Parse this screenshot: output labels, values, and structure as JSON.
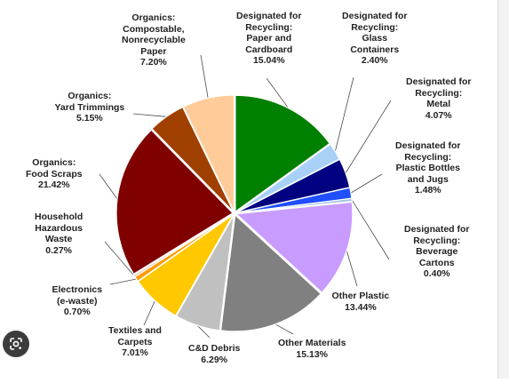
{
  "chart_data": {
    "type": "pie",
    "title": "",
    "start_angle_deg": 90,
    "direction": "clockwise",
    "slices": [
      {
        "label": "Designated for\nRecycling:\nPaper and\nCardboard",
        "value": 15.04,
        "value_label": "15.04%",
        "color": "#008000"
      },
      {
        "label": "Designated for\nRecycling:\nGlass\nContainers",
        "value": 2.4,
        "value_label": "2.40%",
        "color": "#a9d1f7"
      },
      {
        "label": "Designated for\nRecycling:\nMetal",
        "value": 4.07,
        "value_label": "4.07%",
        "color": "#000080"
      },
      {
        "label": "Designated for\nRecycling:\nPlastic Bottles\nand Jugs",
        "value": 1.48,
        "value_label": "1.48%",
        "color": "#1f4fff"
      },
      {
        "label": "Designated for\nRecycling:\nBeverage\nCartons",
        "value": 0.4,
        "value_label": "0.40%",
        "color": "#9ec3e0"
      },
      {
        "label": "Other Plastic",
        "value": 13.44,
        "value_label": "13.44%",
        "color": "#c89cff"
      },
      {
        "label": "Other Materials",
        "value": 15.13,
        "value_label": "15.13%",
        "color": "#808080"
      },
      {
        "label": "C&D Debris",
        "value": 6.29,
        "value_label": "6.29%",
        "color": "#c0c0c0"
      },
      {
        "label": "Textiles and\nCarpets",
        "value": 7.01,
        "value_label": "7.01%",
        "color": "#ffc800"
      },
      {
        "label": "Electronics\n(e-waste)",
        "value": 0.7,
        "value_label": "0.70%",
        "color": "#ff9900"
      },
      {
        "label": "Household\nHazardous\nWaste",
        "value": 0.27,
        "value_label": "0.27%",
        "color": "#f4b183"
      },
      {
        "label": "Organics:\nFood Scraps",
        "value": 21.42,
        "value_label": "21.42%",
        "color": "#800000"
      },
      {
        "label": "Organics:\nYard Trimmings",
        "value": 5.15,
        "value_label": "5.15%",
        "color": "#a04000"
      },
      {
        "label": "Organics:\nCompostable,\nNonrecyclable\nPaper",
        "value": 7.2,
        "value_label": "7.20%",
        "color": "#ffcc99"
      }
    ],
    "legend": "none",
    "labels": "outside with leader lines"
  },
  "overlay": {
    "lens_icon": "google-lens-icon"
  }
}
